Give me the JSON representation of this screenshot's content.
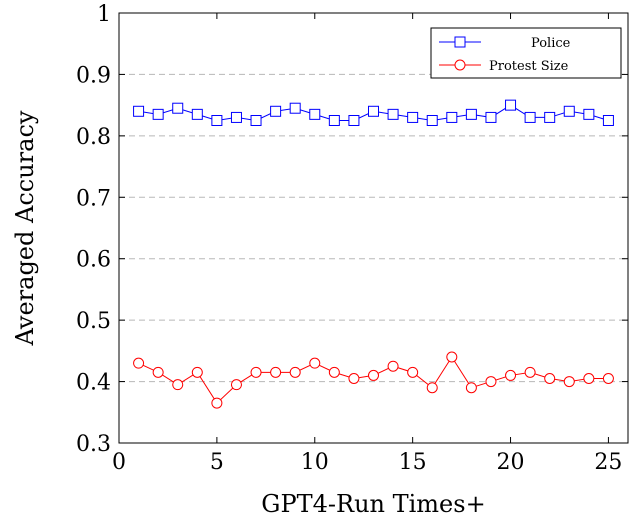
{
  "chart_data": {
    "type": "line",
    "title": "",
    "xlabel": "GPT4-Run Times+",
    "ylabel": "Averaged Accuracy",
    "xlim": [
      0,
      26
    ],
    "ylim": [
      0.3,
      1.0
    ],
    "xticks": [
      0,
      5,
      10,
      15,
      20,
      25
    ],
    "yticks": [
      0.3,
      0.4,
      0.5,
      0.6,
      0.7,
      0.8,
      0.9,
      1.0
    ],
    "ytick_labels": [
      "0.3",
      "0.4",
      "0.5",
      "0.6",
      "0.7",
      "0.8",
      "0.9",
      "1"
    ],
    "grid": "horizontal-dashed",
    "legend_position": "top-right",
    "x": [
      1,
      2,
      3,
      4,
      5,
      6,
      7,
      8,
      9,
      10,
      11,
      12,
      13,
      14,
      15,
      16,
      17,
      18,
      19,
      20,
      21,
      22,
      23,
      24,
      25
    ],
    "series": [
      {
        "name": "Police",
        "color": "#0000ff",
        "marker": "square",
        "values": [
          0.84,
          0.835,
          0.845,
          0.835,
          0.825,
          0.83,
          0.825,
          0.84,
          0.845,
          0.835,
          0.825,
          0.825,
          0.84,
          0.835,
          0.83,
          0.825,
          0.83,
          0.835,
          0.83,
          0.85,
          0.83,
          0.83,
          0.84,
          0.835,
          0.825
        ]
      },
      {
        "name": "Protest Size",
        "color": "#ff0000",
        "marker": "circle",
        "values": [
          0.43,
          0.415,
          0.395,
          0.415,
          0.365,
          0.395,
          0.415,
          0.415,
          0.415,
          0.43,
          0.415,
          0.405,
          0.41,
          0.425,
          0.415,
          0.39,
          0.44,
          0.39,
          0.4,
          0.41,
          0.415,
          0.405,
          0.4,
          0.405,
          0.405
        ]
      }
    ]
  }
}
